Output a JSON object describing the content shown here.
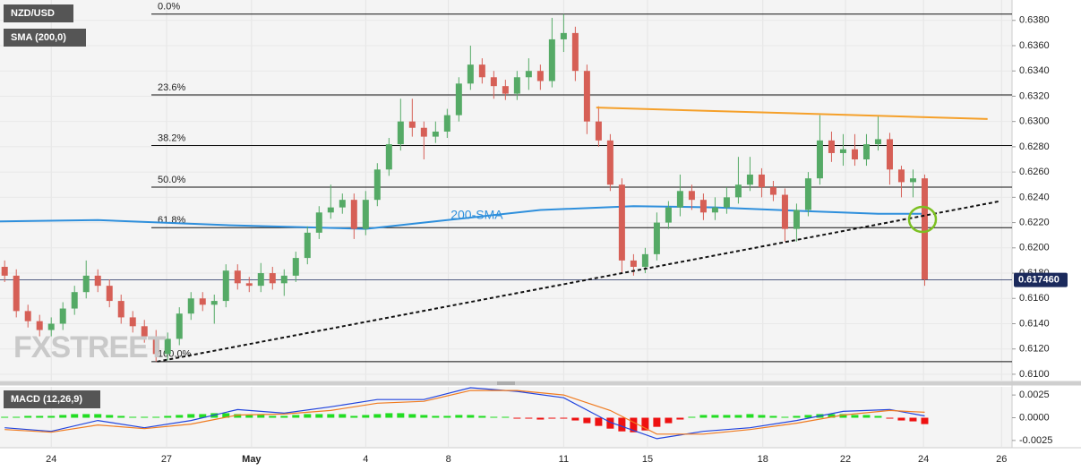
{
  "chart_data": {
    "type": "candlestick",
    "symbol": "NZD/USD",
    "indicator": "SMA (200,0)",
    "watermark": "FXSTREET",
    "up_color": "#55aa66",
    "down_color": "#d65f56",
    "xlim": [
      -0.4,
      86.5
    ],
    "xticks": [
      {
        "value": 4,
        "label": "24"
      },
      {
        "value": 13.9,
        "label": "27"
      },
      {
        "value": 21.2,
        "label": "May"
      },
      {
        "value": 31,
        "label": "4"
      },
      {
        "value": 38.1,
        "label": "8"
      },
      {
        "value": 48,
        "label": "11"
      },
      {
        "value": 55.2,
        "label": "15"
      },
      {
        "value": 65.1,
        "label": "18"
      },
      {
        "value": 72.2,
        "label": "22"
      },
      {
        "value": 78.9,
        "label": "24"
      },
      {
        "value": 85.6,
        "label": "26"
      }
    ],
    "ylim": [
      0.6095,
      0.6394
    ],
    "yticks": [
      {
        "value": 0.61,
        "label": "0.6100"
      },
      {
        "value": 0.612,
        "label": "0.6120"
      },
      {
        "value": 0.614,
        "label": "0.6140"
      },
      {
        "value": 0.616,
        "label": "0.6160"
      },
      {
        "value": 0.618,
        "label": "0.6180"
      },
      {
        "value": 0.62,
        "label": "0.6200"
      },
      {
        "value": 0.622,
        "label": "0.6220"
      },
      {
        "value": 0.624,
        "label": "0.6240"
      },
      {
        "value": 0.626,
        "label": "0.6260"
      },
      {
        "value": 0.628,
        "label": "0.6280"
      },
      {
        "value": 0.63,
        "label": "0.6300"
      },
      {
        "value": 0.632,
        "label": "0.6320"
      },
      {
        "value": 0.634,
        "label": "0.6340"
      },
      {
        "value": 0.636,
        "label": "0.6360"
      },
      {
        "value": 0.638,
        "label": "0.6380"
      }
    ],
    "grid": true,
    "candles": [
      [
        0.6185,
        0.619,
        0.6173,
        0.6178
      ],
      [
        0.6178,
        0.6183,
        0.6145,
        0.615
      ],
      [
        0.615,
        0.6155,
        0.6137,
        0.6142
      ],
      [
        0.6142,
        0.6147,
        0.613,
        0.6135
      ],
      [
        0.6135,
        0.6145,
        0.613,
        0.614
      ],
      [
        0.614,
        0.6157,
        0.6135,
        0.6152
      ],
      [
        0.6152,
        0.617,
        0.6147,
        0.6165
      ],
      [
        0.6165,
        0.619,
        0.616,
        0.6178
      ],
      [
        0.6178,
        0.6183,
        0.6165,
        0.617
      ],
      [
        0.617,
        0.6175,
        0.6153,
        0.6158
      ],
      [
        0.6158,
        0.6163,
        0.614,
        0.6145
      ],
      [
        0.6145,
        0.615,
        0.6133,
        0.6138
      ],
      [
        0.6138,
        0.6143,
        0.6125,
        0.613
      ],
      [
        0.613,
        0.6135,
        0.611,
        0.6116
      ],
      [
        0.6116,
        0.6133,
        0.6111,
        0.6128
      ],
      [
        0.6128,
        0.6153,
        0.6123,
        0.6148
      ],
      [
        0.6148,
        0.6165,
        0.6143,
        0.616
      ],
      [
        0.616,
        0.6165,
        0.615,
        0.6155
      ],
      [
        0.6155,
        0.6163,
        0.614,
        0.6158
      ],
      [
        0.6158,
        0.6187,
        0.6153,
        0.6182
      ],
      [
        0.6182,
        0.6187,
        0.6167,
        0.6172
      ],
      [
        0.6172,
        0.6177,
        0.6165,
        0.617
      ],
      [
        0.617,
        0.6188,
        0.6165,
        0.618
      ],
      [
        0.618,
        0.6185,
        0.6167,
        0.6172
      ],
      [
        0.6172,
        0.6183,
        0.6162,
        0.6178
      ],
      [
        0.6178,
        0.6197,
        0.6173,
        0.6192
      ],
      [
        0.6192,
        0.6217,
        0.6187,
        0.6212
      ],
      [
        0.6212,
        0.6233,
        0.6207,
        0.6228
      ],
      [
        0.6228,
        0.625,
        0.6223,
        0.6232
      ],
      [
        0.6232,
        0.6243,
        0.6227,
        0.6238
      ],
      [
        0.6238,
        0.6243,
        0.6207,
        0.6215
      ],
      [
        0.6215,
        0.6245,
        0.621,
        0.6238
      ],
      [
        0.6238,
        0.6267,
        0.6233,
        0.6262
      ],
      [
        0.6262,
        0.6287,
        0.6257,
        0.6282
      ],
      [
        0.6282,
        0.6318,
        0.6277,
        0.63
      ],
      [
        0.63,
        0.6318,
        0.6288,
        0.6295
      ],
      [
        0.6295,
        0.63,
        0.627,
        0.6288
      ],
      [
        0.6288,
        0.63,
        0.6283,
        0.6292
      ],
      [
        0.6292,
        0.631,
        0.6287,
        0.6305
      ],
      [
        0.6305,
        0.6335,
        0.63,
        0.633
      ],
      [
        0.633,
        0.636,
        0.6325,
        0.6345
      ],
      [
        0.6345,
        0.635,
        0.633,
        0.6335
      ],
      [
        0.6335,
        0.634,
        0.6318,
        0.6328
      ],
      [
        0.6328,
        0.6333,
        0.6317,
        0.6322
      ],
      [
        0.6322,
        0.634,
        0.6317,
        0.6335
      ],
      [
        0.6335,
        0.635,
        0.6325,
        0.634
      ],
      [
        0.634,
        0.6345,
        0.6325,
        0.6332
      ],
      [
        0.6332,
        0.6382,
        0.6327,
        0.6365
      ],
      [
        0.6365,
        0.6385,
        0.6355,
        0.637
      ],
      [
        0.637,
        0.6375,
        0.6332,
        0.634
      ],
      [
        0.634,
        0.6345,
        0.629,
        0.63
      ],
      [
        0.63,
        0.6312,
        0.628,
        0.6285
      ],
      [
        0.6285,
        0.629,
        0.6245,
        0.625
      ],
      [
        0.625,
        0.6255,
        0.618,
        0.619
      ],
      [
        0.619,
        0.6195,
        0.6178,
        0.6185
      ],
      [
        0.6185,
        0.62,
        0.618,
        0.6195
      ],
      [
        0.6195,
        0.6228,
        0.619,
        0.622
      ],
      [
        0.622,
        0.6237,
        0.6215,
        0.6232
      ],
      [
        0.6232,
        0.6258,
        0.6225,
        0.6245
      ],
      [
        0.6245,
        0.625,
        0.623,
        0.6238
      ],
      [
        0.6238,
        0.6243,
        0.6222,
        0.6228
      ],
      [
        0.6228,
        0.624,
        0.6222,
        0.6232
      ],
      [
        0.6232,
        0.6248,
        0.6227,
        0.624
      ],
      [
        0.624,
        0.6272,
        0.6235,
        0.625
      ],
      [
        0.625,
        0.6272,
        0.6245,
        0.6258
      ],
      [
        0.6258,
        0.6263,
        0.624,
        0.6248
      ],
      [
        0.6248,
        0.6253,
        0.6237,
        0.6242
      ],
      [
        0.6242,
        0.6247,
        0.6205,
        0.6215
      ],
      [
        0.6215,
        0.6235,
        0.6205,
        0.623
      ],
      [
        0.623,
        0.626,
        0.6225,
        0.6255
      ],
      [
        0.6255,
        0.6305,
        0.625,
        0.6285
      ],
      [
        0.6285,
        0.6292,
        0.6268,
        0.6275
      ],
      [
        0.6275,
        0.629,
        0.6265,
        0.6278
      ],
      [
        0.6278,
        0.629,
        0.6265,
        0.627
      ],
      [
        0.627,
        0.629,
        0.6265,
        0.6282
      ],
      [
        0.6282,
        0.6305,
        0.6277,
        0.6286
      ],
      [
        0.6286,
        0.6291,
        0.625,
        0.6262
      ],
      [
        0.6262,
        0.6265,
        0.624,
        0.6252
      ],
      [
        0.6252,
        0.6262,
        0.624,
        0.6255
      ],
      [
        0.6255,
        0.6258,
        0.617,
        0.6175
      ]
    ],
    "sma": {
      "name": "200-SMA",
      "color": "#2e8fdc",
      "x": [
        -0.4,
        8,
        19,
        31,
        38,
        46,
        54,
        61,
        69,
        75,
        79
      ],
      "values": [
        0.6221,
        0.6222,
        0.6218,
        0.6215,
        0.6222,
        0.623,
        0.6233,
        0.6232,
        0.6229,
        0.6227,
        0.6227
      ]
    },
    "fib_levels": [
      {
        "name": "0.0%",
        "price": 0.6385
      },
      {
        "name": "23.6%",
        "price": 0.6321
      },
      {
        "name": "38.2%",
        "price": 0.6281
      },
      {
        "name": "50.0%",
        "price": 0.6248
      },
      {
        "name": "61.8%",
        "price": 0.6216
      },
      {
        "name": "100.0%",
        "price": 0.611
      }
    ],
    "fib_start": 12.6,
    "trendlines": [
      {
        "color": "#f5a02a",
        "dashed": false,
        "points": [
          [
            50.8,
            0.6311
          ],
          [
            84.4,
            0.6302
          ]
        ]
      },
      {
        "color": "#111111",
        "dashed": true,
        "points": [
          [
            13.1,
            0.611
          ],
          [
            85.5,
            0.6237
          ]
        ]
      }
    ],
    "last_price": {
      "value": 0.61746,
      "label": "0.617460",
      "color": "#1b2a5c"
    },
    "macd": {
      "title": "MACD (12,26,9)",
      "ylim": [
        -0.0033,
        0.0034
      ],
      "yticks": [
        {
          "value": 0.0025,
          "label": "0.0025"
        },
        {
          "value": 0,
          "label": "0.0000"
        },
        {
          "value": -0.0025,
          "label": "-0.0025"
        }
      ],
      "pos_color": "#22dd22",
      "neg_color": "#ee1111",
      "histogram": [
        0.0001,
        0.0001,
        0.0002,
        0.0002,
        0.0002,
        0.0003,
        0.0004,
        0.0004,
        0.0004,
        0.0003,
        0.0002,
        0.0001,
        0.0001,
        0.0001,
        0.0002,
        0.0003,
        0.0004,
        0.0004,
        0.0005,
        0.0005,
        0.0004,
        0.0003,
        0.0003,
        0.0002,
        0.0002,
        0.0003,
        0.0004,
        0.0004,
        0.0004,
        0.0004,
        0.0002,
        0.0003,
        0.0004,
        0.0005,
        0.0005,
        0.0004,
        0.0003,
        0.0002,
        0.0002,
        0.0003,
        0.0003,
        0.0002,
        0.0001,
        0.0001,
        -0.0001,
        -0.0001,
        -0.0002,
        -0.0001,
        -0.0001,
        -0.0003,
        -0.0006,
        -0.0009,
        -0.0012,
        -0.0015,
        -0.0016,
        -0.0014,
        -0.001,
        -0.0006,
        -0.0002,
        0.0001,
        0.0003,
        0.0003,
        0.0003,
        0.0003,
        0.0004,
        0.0003,
        0.0002,
        0.0001,
        0.0002,
        0.0003,
        0.0004,
        0.0004,
        0.0004,
        0.0003,
        0.0003,
        0.0002,
        -0.0001,
        -0.0003,
        -0.0004,
        -0.0007
      ],
      "lines": [
        {
          "color": "#2244dd",
          "x": [
            0,
            4,
            8,
            12,
            16,
            20,
            24,
            28,
            32,
            36,
            40,
            44,
            48,
            52,
            56,
            60,
            64,
            68,
            72,
            76,
            79
          ],
          "values": [
            -0.0011,
            -0.0015,
            -0.0003,
            -0.0011,
            -0.0003,
            0.0009,
            0.0005,
            0.0012,
            0.002,
            0.002,
            0.0033,
            0.0029,
            0.0022,
            -0.0005,
            -0.0023,
            -0.0015,
            -0.0011,
            -0.0003,
            0.0007,
            0.0009,
            0.0002
          ]
        },
        {
          "color": "#f07b20",
          "x": [
            0,
            4,
            8,
            12,
            16,
            20,
            24,
            28,
            32,
            36,
            40,
            44,
            48,
            52,
            56,
            60,
            64,
            68,
            72,
            76,
            79
          ],
          "values": [
            -0.0013,
            -0.0016,
            -0.0008,
            -0.0012,
            -0.0007,
            0.0003,
            0.0004,
            0.0008,
            0.0016,
            0.0018,
            0.003,
            0.003,
            0.0025,
            0.0008,
            -0.0018,
            -0.0018,
            -0.0013,
            -0.0006,
            0.0003,
            0.0008,
            0.0006
          ]
        }
      ]
    }
  }
}
